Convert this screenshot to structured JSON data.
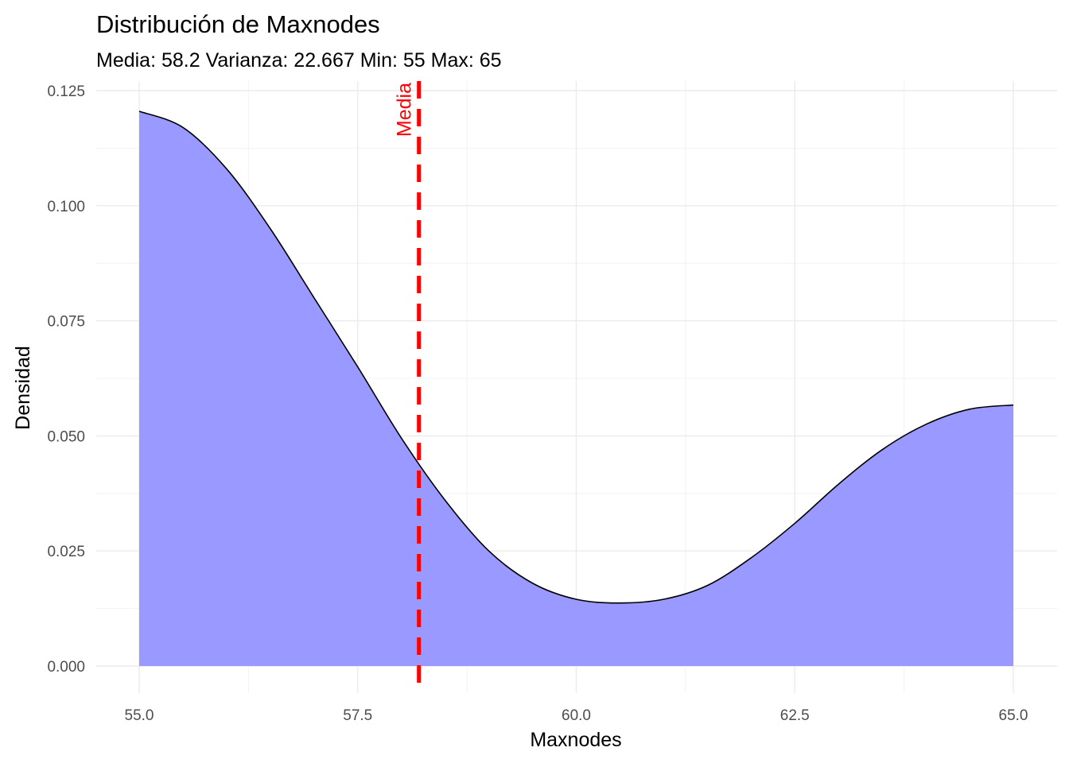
{
  "chart_data": {
    "type": "area",
    "title": "Distribución de Maxnodes",
    "subtitle": "Media: 58.2 Varianza: 22.667 Min: 55 Max: 65",
    "xlabel": "Maxnodes",
    "ylabel": "Densidad",
    "xlim": [
      55,
      65
    ],
    "ylim": [
      0,
      0.125
    ],
    "x_ticks": [
      "55.0",
      "57.5",
      "60.0",
      "62.5",
      "65.0"
    ],
    "y_ticks": [
      "0.000",
      "0.025",
      "0.050",
      "0.075",
      "0.100",
      "0.125"
    ],
    "x_tick_values": [
      55,
      57.5,
      60,
      62.5,
      65
    ],
    "y_tick_values": [
      0,
      0.025,
      0.05,
      0.075,
      0.1,
      0.125
    ],
    "grid": true,
    "series": [
      {
        "fill_color": "#9999ff",
        "line_color": "#000000",
        "x": [
          55.0,
          55.5,
          56.0,
          56.5,
          57.0,
          57.5,
          58.0,
          58.5,
          59.0,
          59.5,
          60.0,
          60.5,
          61.0,
          61.5,
          62.0,
          62.5,
          63.0,
          63.5,
          64.0,
          64.5,
          65.0
        ],
        "y": [
          0.1205,
          0.117,
          0.108,
          0.095,
          0.08,
          0.065,
          0.0495,
          0.036,
          0.025,
          0.018,
          0.0145,
          0.0137,
          0.0145,
          0.0175,
          0.0235,
          0.031,
          0.0395,
          0.047,
          0.0525,
          0.0558,
          0.0567
        ]
      }
    ],
    "annotations": [
      {
        "type": "vline",
        "x": 58.2,
        "label": "Media",
        "color": "#ff0000",
        "style": "dashed"
      }
    ]
  }
}
